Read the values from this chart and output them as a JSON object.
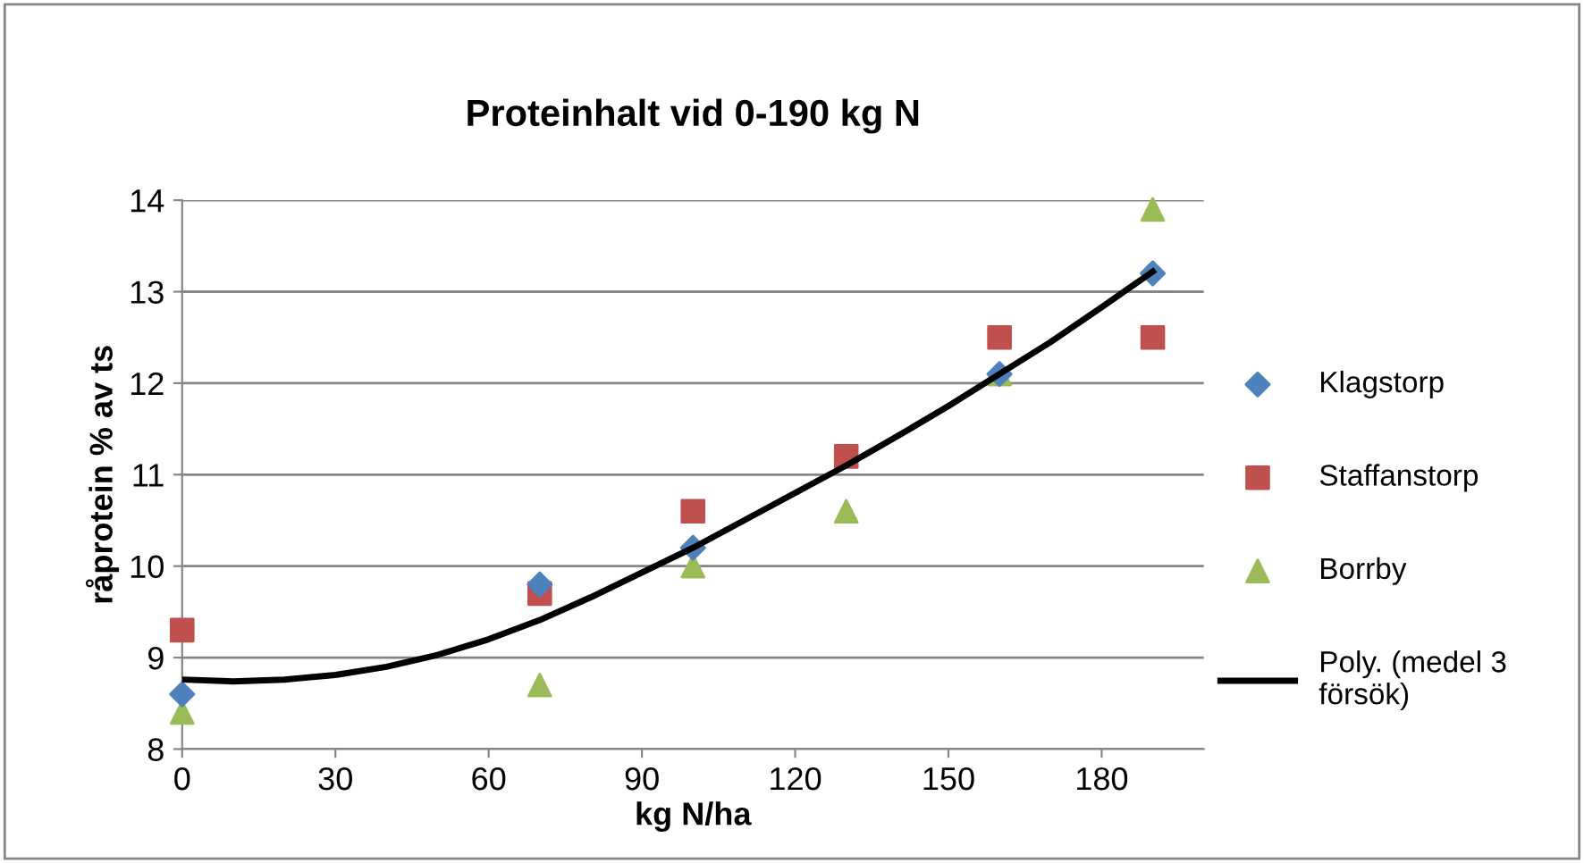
{
  "chart_data": {
    "type": "scatter",
    "title": "Proteinhalt vid 0-190 kg N",
    "xlabel": "kg N/ha",
    "ylabel": "råprotein % av ts",
    "xlim": [
      0,
      200
    ],
    "xticks": [
      0,
      30,
      60,
      90,
      120,
      150,
      180
    ],
    "ylim": [
      8,
      14
    ],
    "yticks": [
      8,
      9,
      10,
      11,
      12,
      13,
      14
    ],
    "grid": "y",
    "legend": "right",
    "series": [
      {
        "name": "Klagstorp",
        "color": "#4f81bd",
        "marker": "diamond",
        "x": [
          0,
          70,
          100,
          130,
          160,
          190
        ],
        "values": [
          8.6,
          9.8,
          10.2,
          null,
          12.1,
          13.2
        ]
      },
      {
        "name": "Staffanstorp",
        "color": "#c0504d",
        "marker": "square",
        "x": [
          0,
          70,
          100,
          130,
          160,
          190
        ],
        "values": [
          9.3,
          9.7,
          10.6,
          11.2,
          12.5,
          12.5
        ]
      },
      {
        "name": "Borrby",
        "color": "#9bbb59",
        "marker": "triangle",
        "x": [
          0,
          70,
          100,
          130,
          160,
          190
        ],
        "values": [
          8.4,
          8.7,
          10.0,
          10.6,
          12.1,
          13.9
        ]
      },
      {
        "name": "Poly. (medel 3 försök)",
        "type": "line",
        "color": "#000000",
        "marker": "none",
        "line_style": "solid",
        "x": [
          0,
          10,
          20,
          30,
          40,
          50,
          60,
          70,
          80,
          90,
          100,
          110,
          120,
          130,
          140,
          150,
          160,
          170,
          180,
          190
        ],
        "values": [
          8.76,
          8.74,
          8.76,
          8.81,
          8.9,
          9.03,
          9.2,
          9.41,
          9.66,
          9.93,
          10.2,
          10.5,
          10.8,
          11.1,
          11.42,
          11.75,
          12.1,
          12.45,
          12.83,
          13.22
        ]
      }
    ]
  }
}
